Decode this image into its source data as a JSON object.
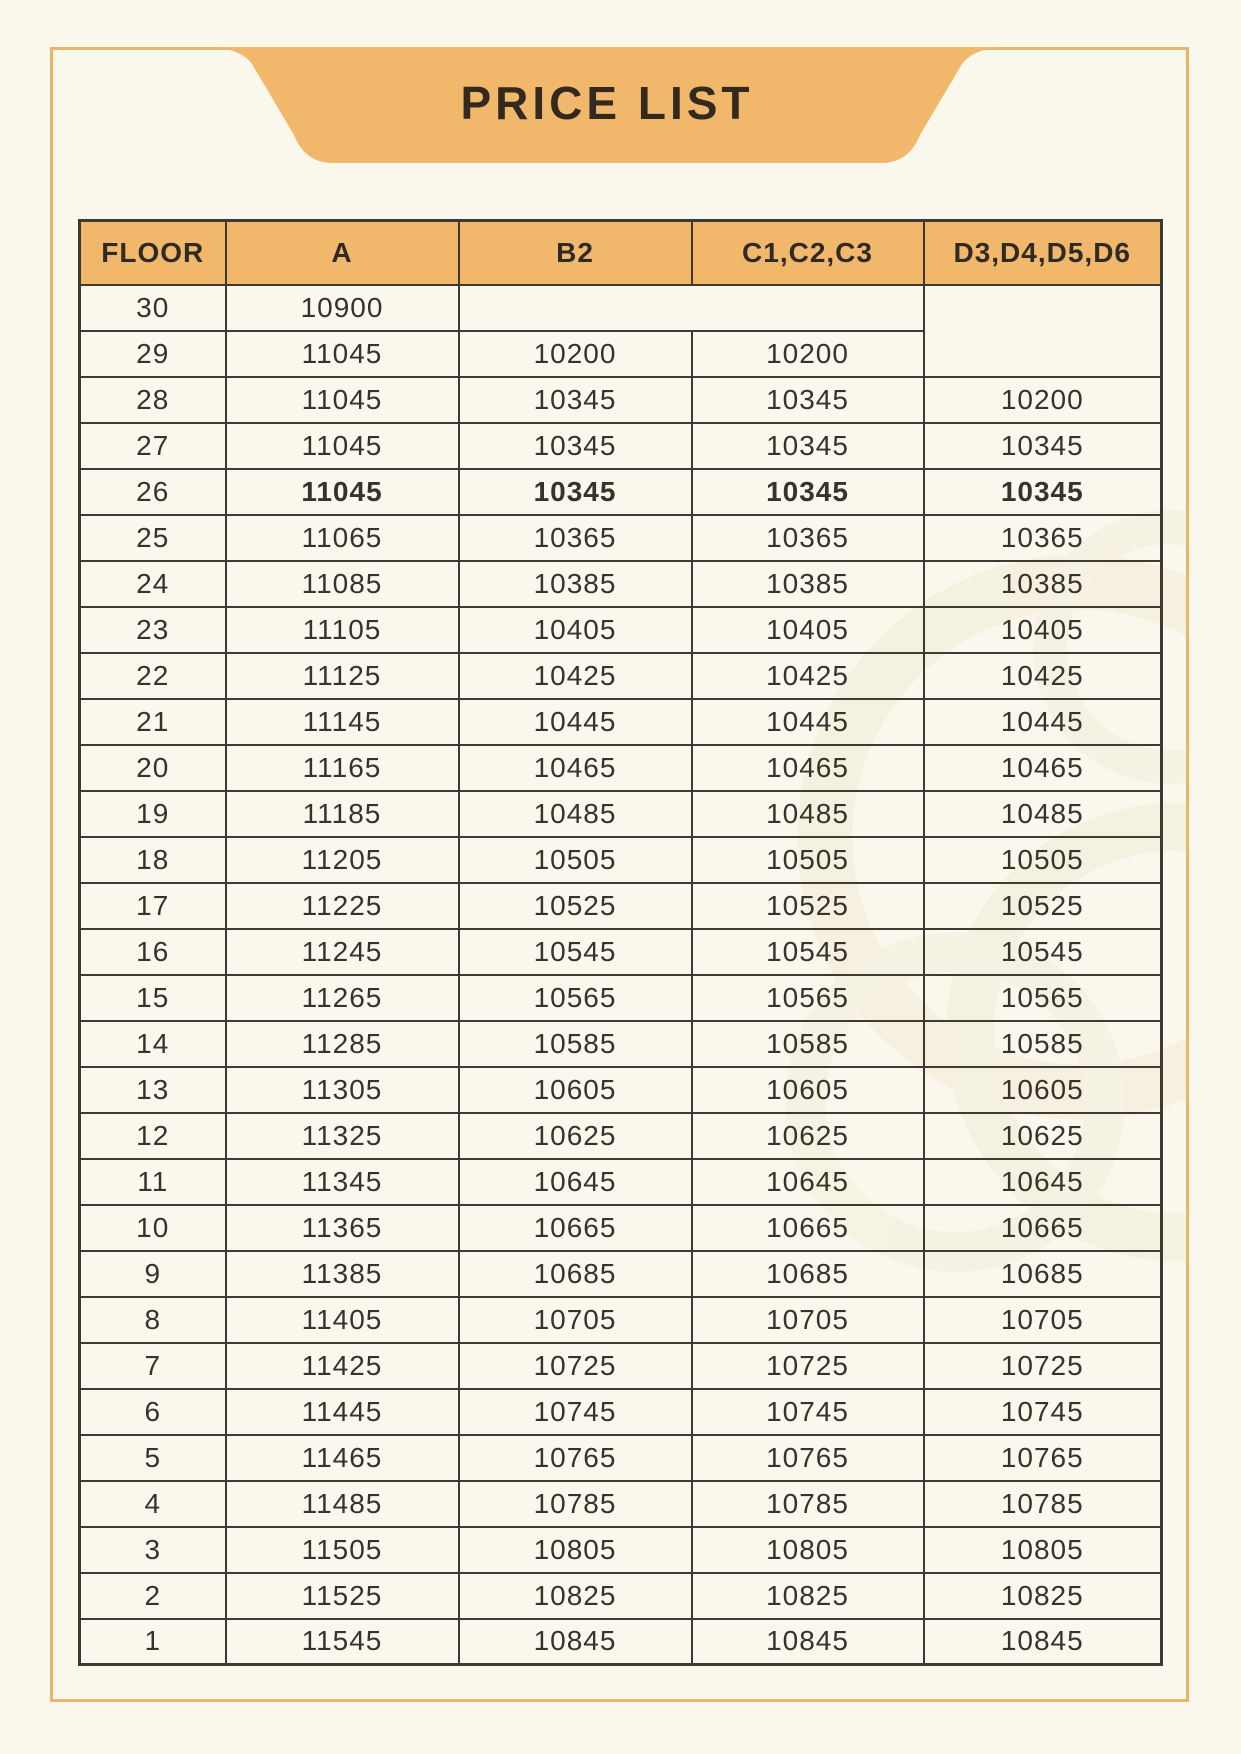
{
  "title": "PRICE LIST",
  "table": {
    "columns": [
      "FLOOR",
      "A",
      "B2",
      "C1,C2,C3",
      "D3,D4,D5,D6"
    ],
    "rows": [
      {
        "floor": "30",
        "a": "10900",
        "bc_merged": true,
        "d_rowspan": 2
      },
      {
        "floor": "29",
        "a": "11045",
        "b2": "10200",
        "c": "10200",
        "d_covered": true
      },
      {
        "floor": "28",
        "a": "11045",
        "b2": "10345",
        "c": "10345",
        "d": "10200"
      },
      {
        "floor": "27",
        "a": "11045",
        "b2": "10345",
        "c": "10345",
        "d": "10345"
      },
      {
        "floor": "26",
        "a": "11045",
        "b2": "10345",
        "c": "10345",
        "d": "10345",
        "highlight": true
      },
      {
        "floor": "25",
        "a": "11065",
        "b2": "10365",
        "c": "10365",
        "d": "10365"
      },
      {
        "floor": "24",
        "a": "11085",
        "b2": "10385",
        "c": "10385",
        "d": "10385"
      },
      {
        "floor": "23",
        "a": "11105",
        "b2": "10405",
        "c": "10405",
        "d": "10405"
      },
      {
        "floor": "22",
        "a": "11125",
        "b2": "10425",
        "c": "10425",
        "d": "10425"
      },
      {
        "floor": "21",
        "a": "11145",
        "b2": "10445",
        "c": "10445",
        "d": "10445"
      },
      {
        "floor": "20",
        "a": "11165",
        "b2": "10465",
        "c": "10465",
        "d": "10465"
      },
      {
        "floor": "19",
        "a": "11185",
        "b2": "10485",
        "c": "10485",
        "d": "10485"
      },
      {
        "floor": "18",
        "a": "11205",
        "b2": "10505",
        "c": "10505",
        "d": "10505"
      },
      {
        "floor": "17",
        "a": "11225",
        "b2": "10525",
        "c": "10525",
        "d": "10525"
      },
      {
        "floor": "16",
        "a": "11245",
        "b2": "10545",
        "c": "10545",
        "d": "10545"
      },
      {
        "floor": "15",
        "a": "11265",
        "b2": "10565",
        "c": "10565",
        "d": "10565"
      },
      {
        "floor": "14",
        "a": "11285",
        "b2": "10585",
        "c": "10585",
        "d": "10585"
      },
      {
        "floor": "13",
        "a": "11305",
        "b2": "10605",
        "c": "10605",
        "d": "10605"
      },
      {
        "floor": "12",
        "a": "11325",
        "b2": "10625",
        "c": "10625",
        "d": "10625"
      },
      {
        "floor": "11",
        "a": "11345",
        "b2": "10645",
        "c": "10645",
        "d": "10645"
      },
      {
        "floor": "10",
        "a": "11365",
        "b2": "10665",
        "c": "10665",
        "d": "10665"
      },
      {
        "floor": "9",
        "a": "11385",
        "b2": "10685",
        "c": "10685",
        "d": "10685"
      },
      {
        "floor": "8",
        "a": "11405",
        "b2": "10705",
        "c": "10705",
        "d": "10705"
      },
      {
        "floor": "7",
        "a": "11425",
        "b2": "10725",
        "c": "10725",
        "d": "10725"
      },
      {
        "floor": "6",
        "a": "11445",
        "b2": "10745",
        "c": "10745",
        "d": "10745"
      },
      {
        "floor": "5",
        "a": "11465",
        "b2": "10765",
        "c": "10765",
        "d": "10765"
      },
      {
        "floor": "4",
        "a": "11485",
        "b2": "10785",
        "c": "10785",
        "d": "10785"
      },
      {
        "floor": "3",
        "a": "11505",
        "b2": "10805",
        "c": "10805",
        "d": "10805"
      },
      {
        "floor": "2",
        "a": "11525",
        "b2": "10825",
        "c": "10825",
        "d": "10825"
      },
      {
        "floor": "1",
        "a": "11545",
        "b2": "10845",
        "c": "10845",
        "d": "10845"
      }
    ]
  },
  "colors": {
    "accent_orange": "#F1B86C",
    "frame_orange": "#ECB467",
    "highlight_row": "#FBDDB2",
    "page_background": "#FAF8ED",
    "table_border": "#3E3A33",
    "text": "#332F29"
  }
}
